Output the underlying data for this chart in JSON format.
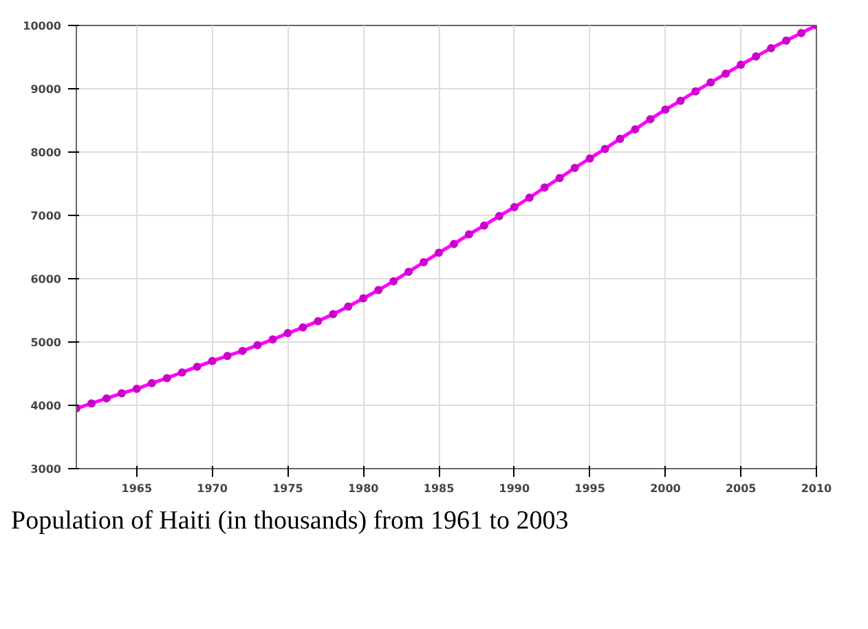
{
  "chart_data": {
    "type": "line",
    "x": [
      1961,
      1962,
      1963,
      1964,
      1965,
      1966,
      1967,
      1968,
      1969,
      1970,
      1971,
      1972,
      1973,
      1974,
      1975,
      1976,
      1977,
      1978,
      1979,
      1980,
      1981,
      1982,
      1983,
      1984,
      1985,
      1986,
      1987,
      1988,
      1989,
      1990,
      1991,
      1992,
      1993,
      1994,
      1995,
      1996,
      1997,
      1998,
      1999,
      2000,
      2001,
      2002,
      2003,
      2004,
      2005,
      2006,
      2007,
      2008,
      2009,
      2010
    ],
    "series": [
      {
        "color": "#ff00ff",
        "values": [
          3950,
          4030,
          4110,
          4190,
          4260,
          4350,
          4430,
          4520,
          4610,
          4700,
          4780,
          4860,
          4950,
          5040,
          5140,
          5230,
          5330,
          5440,
          5560,
          5690,
          5820,
          5960,
          6110,
          6260,
          6410,
          6550,
          6700,
          6840,
          6990,
          7130,
          7280,
          7440,
          7590,
          7750,
          7900,
          8050,
          8210,
          8360,
          8520,
          8670,
          8810,
          8960,
          9100,
          9240,
          9380,
          9510,
          9640,
          9760,
          9880,
          10000
        ]
      }
    ],
    "xlim": [
      1961,
      2010
    ],
    "ylim": [
      3000,
      10000
    ],
    "xticks": [
      1965,
      1970,
      1975,
      1980,
      1985,
      1990,
      1995,
      2000,
      2005,
      2010
    ],
    "yticks": [
      3000,
      4000,
      5000,
      6000,
      7000,
      8000,
      9000,
      10000
    ],
    "grid": true,
    "marker": "circle",
    "line_style": "solid",
    "annotations": [
      "Population of Haiti (in thousands) from 1961 to 2003"
    ]
  }
}
